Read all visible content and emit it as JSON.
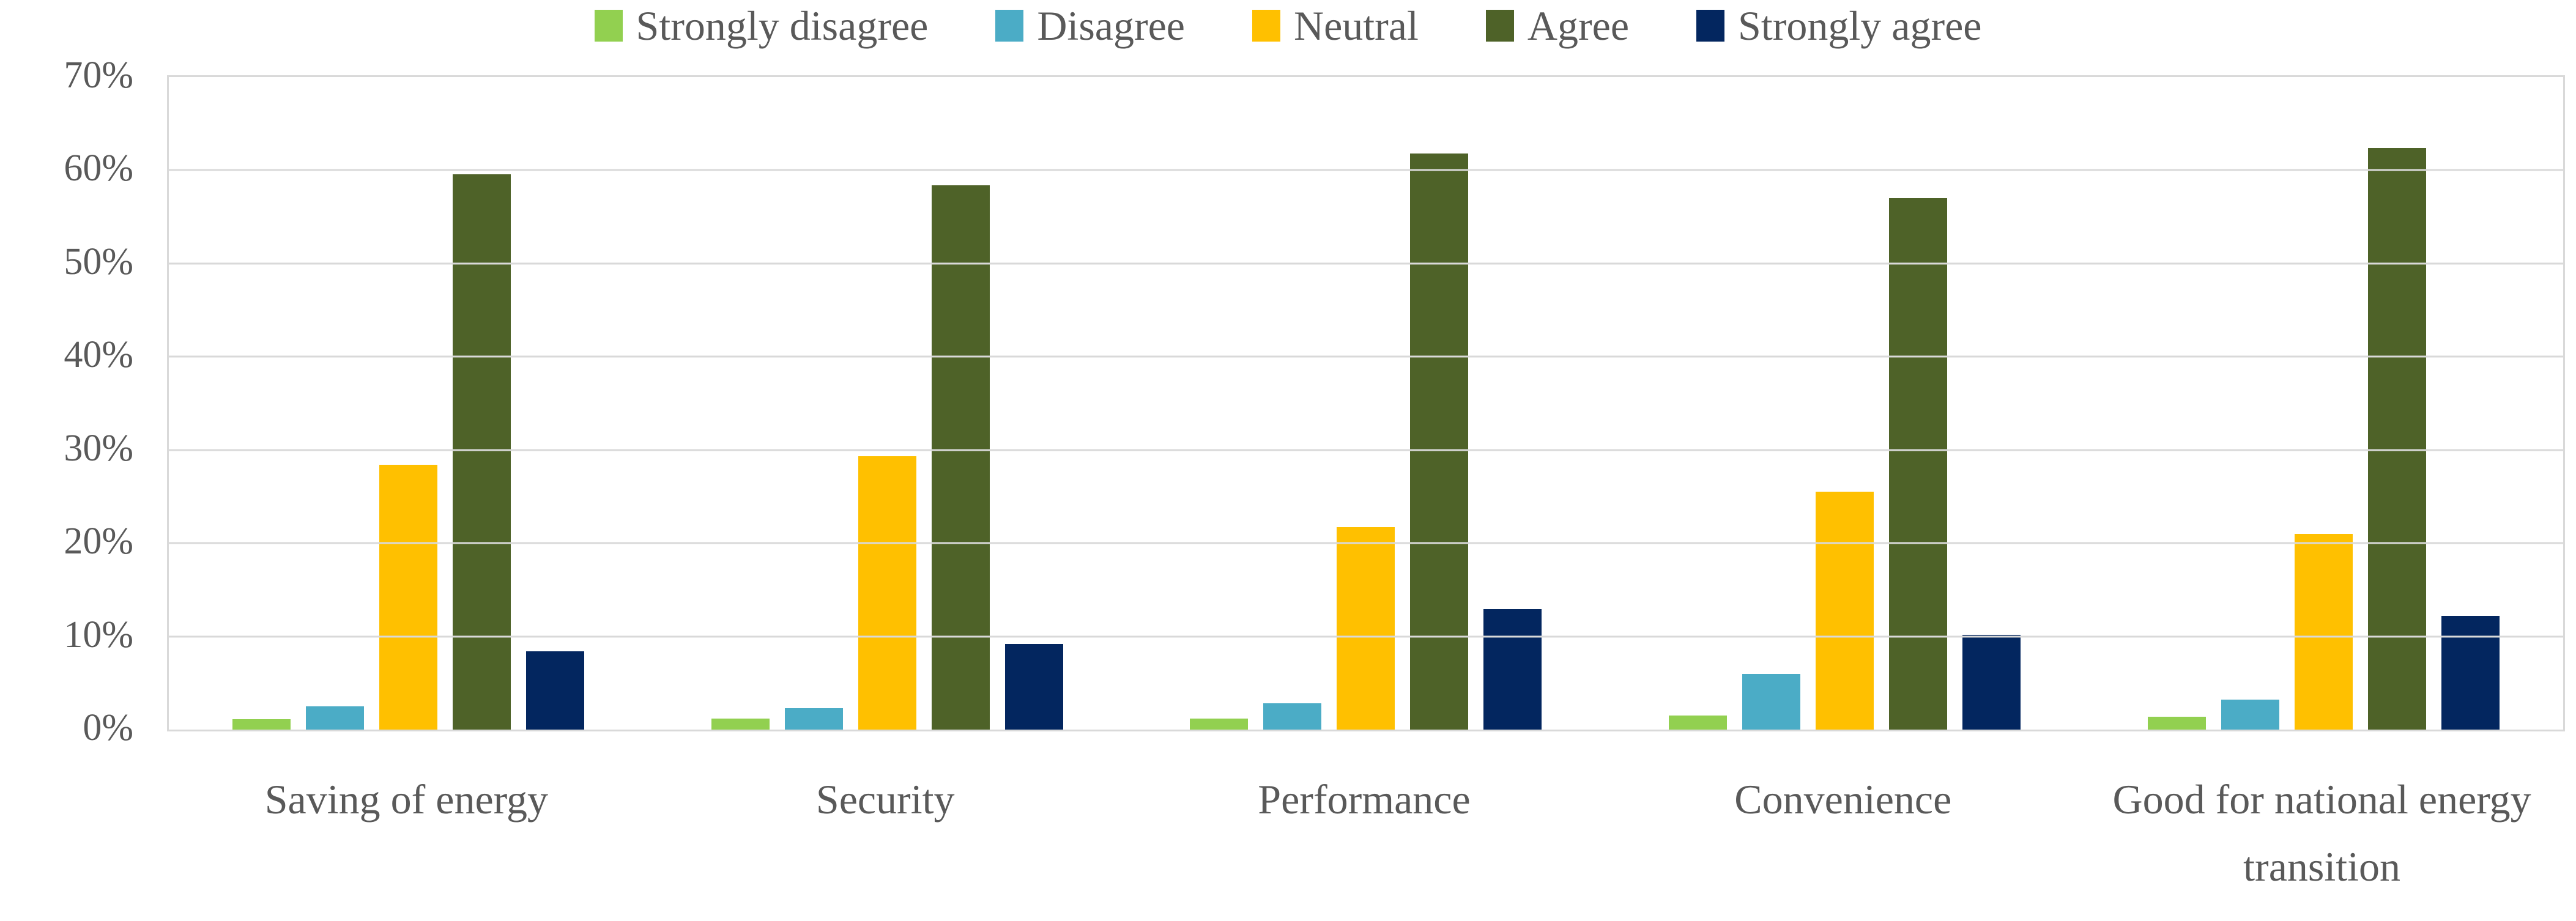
{
  "text_color": "#595959",
  "gridline_color": "#D9D9D9",
  "chart_data": {
    "type": "bar",
    "title": "",
    "xlabel": "",
    "ylabel": "",
    "categories": [
      "Saving of energy",
      "Security",
      "Performance",
      "Convenience",
      "Good for national energy transition"
    ],
    "series": [
      {
        "name": "Strongly disagree",
        "color": "#92D050",
        "values": [
          1.1,
          1.2,
          1.2,
          1.5,
          1.4
        ]
      },
      {
        "name": "Disagree",
        "color": "#4BACC6",
        "values": [
          2.5,
          2.3,
          2.8,
          6.0,
          3.2
        ]
      },
      {
        "name": "Neutral",
        "color": "#FFC000",
        "values": [
          28.4,
          29.3,
          21.7,
          25.5,
          21.0
        ]
      },
      {
        "name": "Agree",
        "color": "#4E6228",
        "values": [
          59.6,
          58.4,
          61.8,
          57.0,
          62.4
        ]
      },
      {
        "name": "Strongly agree",
        "color": "#03265F",
        "values": [
          8.4,
          9.2,
          12.9,
          10.2,
          12.2
        ]
      }
    ],
    "ylim": [
      0,
      70
    ],
    "y_ticks": [
      "0%",
      "10%",
      "20%",
      "30%",
      "40%",
      "50%",
      "60%",
      "70%"
    ],
    "grid": true,
    "legend_position": "top"
  }
}
